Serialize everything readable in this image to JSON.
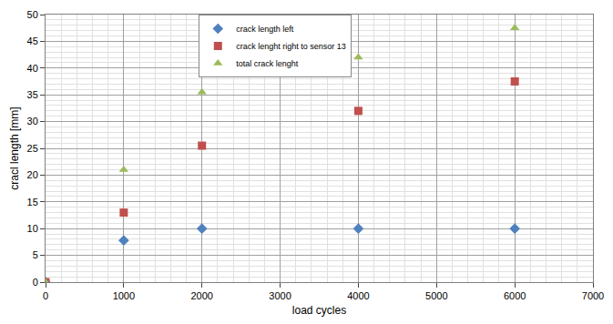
{
  "chart_data": {
    "type": "scatter",
    "x_label": "load cycles",
    "y_label": "cracl length [mm]",
    "series": [
      {
        "name": "crack length left",
        "color": "#4f81bd",
        "marker": "diamond",
        "x": [
          0,
          1000,
          2000,
          4000,
          6000
        ],
        "values": [
          0,
          7.8,
          10,
          10,
          10
        ]
      },
      {
        "name": "crack lenght right to sensor 13",
        "color": "#c0504d",
        "marker": "square",
        "x": [
          0,
          1000,
          2000,
          4000,
          6000
        ],
        "values": [
          0,
          13,
          25.5,
          32,
          37.5
        ]
      },
      {
        "name": "total crack lenght",
        "color": "#9bbb59",
        "marker": "triangle-up",
        "x": [
          0,
          1000,
          2000,
          4000,
          6000
        ],
        "values": [
          0,
          21,
          35.5,
          42,
          47.5
        ]
      }
    ],
    "xlim": [
      0,
      7000
    ],
    "xticks": [
      0,
      1000,
      2000,
      3000,
      4000,
      5000,
      6000,
      7000
    ],
    "ylim": [
      0,
      50
    ],
    "yticks": [
      0,
      5,
      10,
      15,
      20,
      25,
      30,
      35,
      40,
      45,
      50
    ],
    "grid": true,
    "legend": "top"
  }
}
